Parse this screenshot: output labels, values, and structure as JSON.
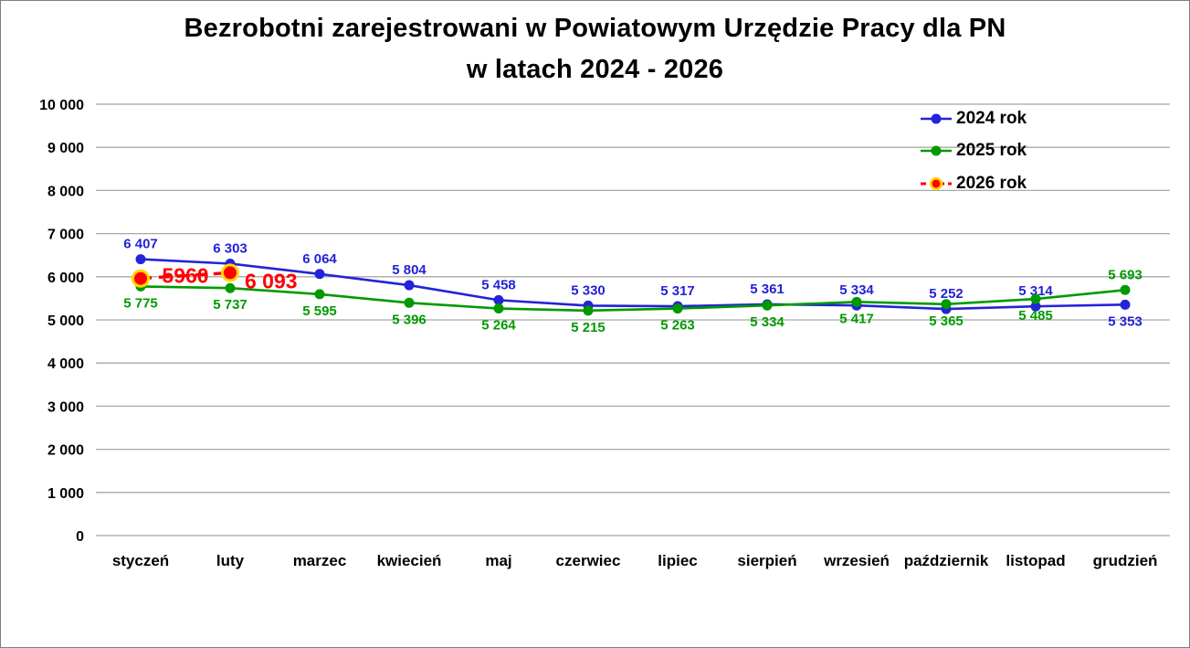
{
  "title": {
    "line1": "Bezrobotni zarejestrowani w Powiatowym Urzędzie Pracy dla PN",
    "line2": "w latach 2024 - 2026"
  },
  "chart_data": {
    "type": "line",
    "title": "Bezrobotni zarejestrowani w Powiatowym Urzędzie Pracy dla PN w latach 2024 - 2026",
    "categories": [
      "styczeń",
      "luty",
      "marzec",
      "kwiecień",
      "maj",
      "czerwiec",
      "lipiec",
      "sierpień",
      "wrzesień",
      "październik",
      "listopad",
      "grudzień"
    ],
    "series": [
      {
        "name": "2024 rok",
        "color": "#2323d7",
        "line_style": "solid",
        "line_width": 2.6,
        "marker": {
          "shape": "circle",
          "radius": 5.5
        },
        "values": [
          6407,
          6303,
          6064,
          5804,
          5458,
          5330,
          5317,
          5361,
          5334,
          5252,
          5314,
          5353
        ],
        "labels": [
          "6 407",
          "6 303",
          "6 064",
          "5 804",
          "5 458",
          "5 330",
          "5 317",
          "5 361",
          "5 334",
          "5 252",
          "5 314",
          "5 353"
        ],
        "label_positions": [
          "above",
          "above",
          "above",
          "above",
          "above",
          "above",
          "above",
          "above",
          "above",
          "above",
          "above",
          "below"
        ],
        "label_font_size": 15
      },
      {
        "name": "2025 rok",
        "color": "#009a00",
        "line_style": "solid",
        "line_width": 2.6,
        "marker": {
          "shape": "circle",
          "radius": 5.5
        },
        "values": [
          5775,
          5737,
          5595,
          5396,
          5264,
          5215,
          5263,
          5334,
          5417,
          5365,
          5485,
          5693
        ],
        "labels": [
          "5 775",
          "5 737",
          "5 595",
          "5 396",
          "5 264",
          "5 215",
          "5 263",
          "5 334",
          "5 417",
          "5 365",
          "5 485",
          "5 693"
        ],
        "label_positions": [
          "below",
          "below",
          "below",
          "below",
          "below",
          "below",
          "below",
          "below",
          "below",
          "below",
          "below",
          "above"
        ],
        "label_font_size": 15
      },
      {
        "name": "2026 rok",
        "color": "#ff0000",
        "line_style": "dashed",
        "line_width": 3.5,
        "marker": {
          "shape": "circle",
          "radius": 8.5,
          "ring_color": "#ffd700",
          "ring_width": 3
        },
        "values": [
          5960,
          6093,
          null,
          null,
          null,
          null,
          null,
          null,
          null,
          null,
          null,
          null
        ],
        "labels": [
          "5960",
          "6 093",
          null,
          null,
          null,
          null,
          null,
          null,
          null,
          null,
          null,
          null
        ],
        "label_positions": [
          "online-mid",
          "right",
          null,
          null,
          null,
          null,
          null,
          null,
          null,
          null,
          null,
          null
        ],
        "label_font_size": 23
      }
    ],
    "ylim": [
      0,
      10000
    ],
    "ytick_step": 1000,
    "ytick_labels": [
      "0",
      "1 000",
      "2 000",
      "3 000",
      "4 000",
      "5 000",
      "6 000",
      "7 000",
      "8 000",
      "9 000",
      "10 000"
    ],
    "grid": true,
    "gridline_color": "#a8a8a8",
    "legend_position": "top-right",
    "xlabel": "",
    "ylabel": ""
  },
  "legend": {
    "items": [
      {
        "label": "2024 rok"
      },
      {
        "label": "2025 rok"
      },
      {
        "label": "2026 rok"
      }
    ]
  }
}
